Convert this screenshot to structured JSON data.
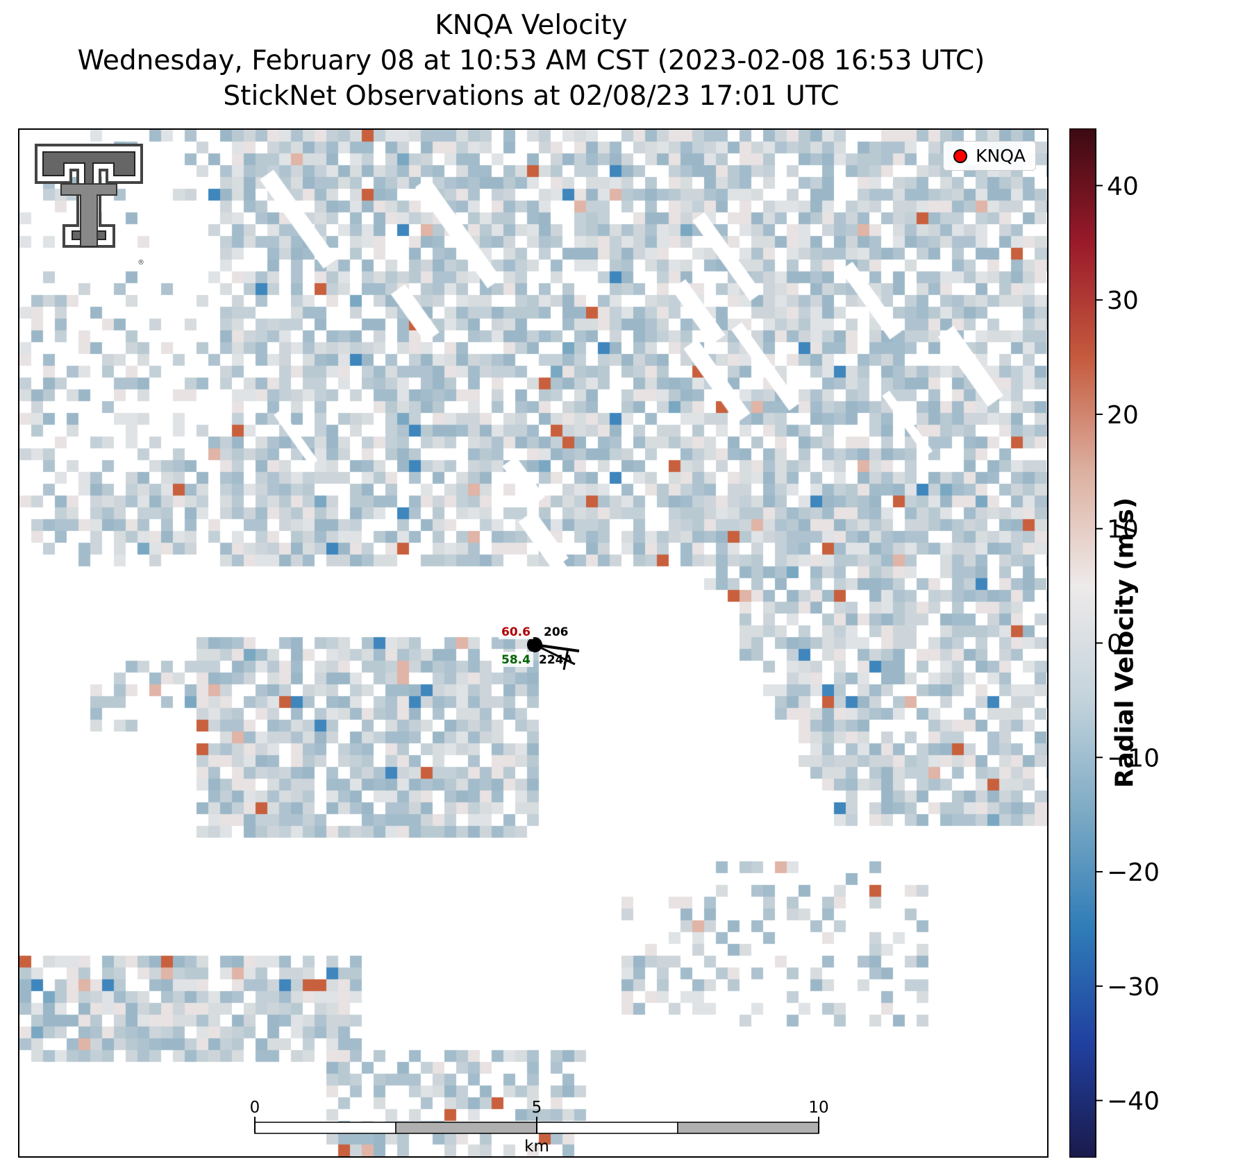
{
  "title": {
    "line1": "KNQA Velocity",
    "line2": "Wednesday, February 08 at 10:53 AM CST (2023-02-08 16:53 UTC)",
    "line3": "StickNet Observations at 02/08/23 17:01 UTC"
  },
  "legend": {
    "label": "KNQA",
    "marker_color": "#ff0000"
  },
  "colorbar": {
    "label": "Radial Velocity (m/s)",
    "min": -45,
    "max": 45,
    "ticks": [
      40,
      30,
      20,
      10,
      0,
      -10,
      -20,
      -30,
      -40
    ],
    "tick_labels": [
      "40",
      "30",
      "20",
      "10",
      "0",
      "−10",
      "−20",
      "−30",
      "−40"
    ],
    "colors": [
      "#1a1a4a",
      "#2040a0",
      "#2f7cb8",
      "#7ba9c4",
      "#c3d3dc",
      "#eeeaea",
      "#dcb0a0",
      "#c55a3e",
      "#9a1a2a",
      "#3b0a12"
    ]
  },
  "station": {
    "temperature": "60.6",
    "dewpoint": "58.4",
    "pressure": "206",
    "station_id": "224A",
    "temperature_color": "#b00000",
    "dewpoint_color": "#006400"
  },
  "scalebar": {
    "tick_labels": [
      "0",
      "5",
      "10"
    ],
    "unit": "km"
  },
  "logo": {
    "icon": "texas-tech-double-t-logo"
  }
}
